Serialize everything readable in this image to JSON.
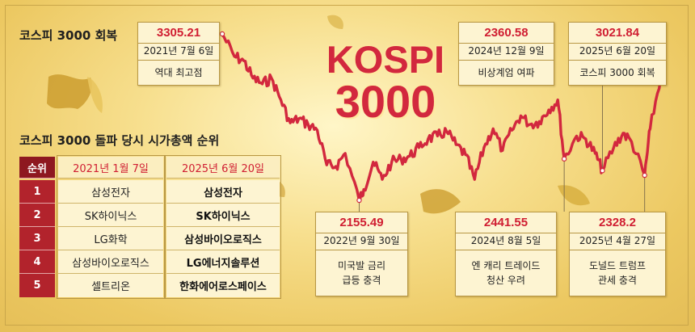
{
  "headline": {
    "line1": "KOSPI",
    "line2": "3000"
  },
  "chart_heading": "코스피 3000 회복",
  "table_heading": "코스피 3000 돌파 당시 시가총액 순위",
  "colors": {
    "line": "#d2283e",
    "rank_bg": "#b2232c",
    "value_text": "#d01e32"
  },
  "chart_data": {
    "type": "line",
    "title": "",
    "xlabel": "",
    "ylabel": "",
    "x_range": [
      "2021-07",
      "2025-06"
    ],
    "ylim": [
      2100,
      3400
    ],
    "series": [
      {
        "name": "",
        "points": [
          [
            "2021-07-06",
            3305.21
          ],
          [
            "2021-08",
            3150
          ],
          [
            "2021-09",
            3120
          ],
          [
            "2021-10",
            3000
          ],
          [
            "2021-11",
            2960
          ],
          [
            "2021-12",
            3000
          ],
          [
            "2022-01",
            2850
          ],
          [
            "2022-02",
            2690
          ],
          [
            "2022-03",
            2720
          ],
          [
            "2022-04",
            2680
          ],
          [
            "2022-05",
            2640
          ],
          [
            "2022-06",
            2400
          ],
          [
            "2022-07",
            2390
          ],
          [
            "2022-08",
            2480
          ],
          [
            "2022-09-30",
            2155.49
          ],
          [
            "2022-10",
            2230
          ],
          [
            "2022-11",
            2420
          ],
          [
            "2022-12",
            2300
          ],
          [
            "2023-01",
            2420
          ],
          [
            "2023-02",
            2440
          ],
          [
            "2023-03",
            2460
          ],
          [
            "2023-04",
            2520
          ],
          [
            "2023-05",
            2580
          ],
          [
            "2023-06",
            2600
          ],
          [
            "2023-07",
            2630
          ],
          [
            "2023-08",
            2540
          ],
          [
            "2023-09",
            2470
          ],
          [
            "2023-10",
            2300
          ],
          [
            "2023-11",
            2520
          ],
          [
            "2023-12",
            2650
          ],
          [
            "2024-01",
            2500
          ],
          [
            "2024-02",
            2640
          ],
          [
            "2024-03",
            2740
          ],
          [
            "2024-04",
            2680
          ],
          [
            "2024-05",
            2700
          ],
          [
            "2024-06",
            2780
          ],
          [
            "2024-07",
            2850
          ],
          [
            "2024-08-05",
            2441.55
          ],
          [
            "2024-09",
            2600
          ],
          [
            "2024-10",
            2580
          ],
          [
            "2024-11",
            2480
          ],
          [
            "2024-12-09",
            2360.58
          ],
          [
            "2025-01",
            2520
          ],
          [
            "2025-02",
            2620
          ],
          [
            "2025-03",
            2560
          ],
          [
            "2025-04-27",
            2328.2
          ],
          [
            "2025-05",
            2650
          ],
          [
            "2025-06-20",
            3021.84
          ]
        ]
      }
    ],
    "annotations": [
      {
        "value": "3305.21",
        "date": "2021년 7월 6일",
        "note": "역대 최고점"
      },
      {
        "value": "2155.49",
        "date": "2022년 9월 30일",
        "note": "미국발 금리\n급등 충격"
      },
      {
        "value": "2441.55",
        "date": "2024년 8월 5일",
        "note": "엔 캐리 트레이드\n청산 우려"
      },
      {
        "value": "2360.58",
        "date": "2024년 12월 9일",
        "note": "비상계엄 여파"
      },
      {
        "value": "2328.2",
        "date": "2025년 4월 27일",
        "note": "도널드 트럼프\n관세 충격"
      },
      {
        "value": "3021.84",
        "date": "2025년 6월 20일",
        "note": "코스피 3000 회복"
      }
    ]
  },
  "table": {
    "headers": [
      "순위",
      "2021년 1월 7일",
      "2025년 6월 20일"
    ],
    "rows": [
      {
        "rank": "1",
        "a": "삼성전자",
        "b": "삼성전자"
      },
      {
        "rank": "2",
        "a": "SK하이닉스",
        "b": "SK하이닉스"
      },
      {
        "rank": "3",
        "a": "LG화학",
        "b": "삼성바이오로직스"
      },
      {
        "rank": "4",
        "a": "삼성바이오로직스",
        "b": "LG에너지솔루션"
      },
      {
        "rank": "5",
        "a": "셀트리온",
        "b": "한화에어로스페이스"
      }
    ]
  }
}
